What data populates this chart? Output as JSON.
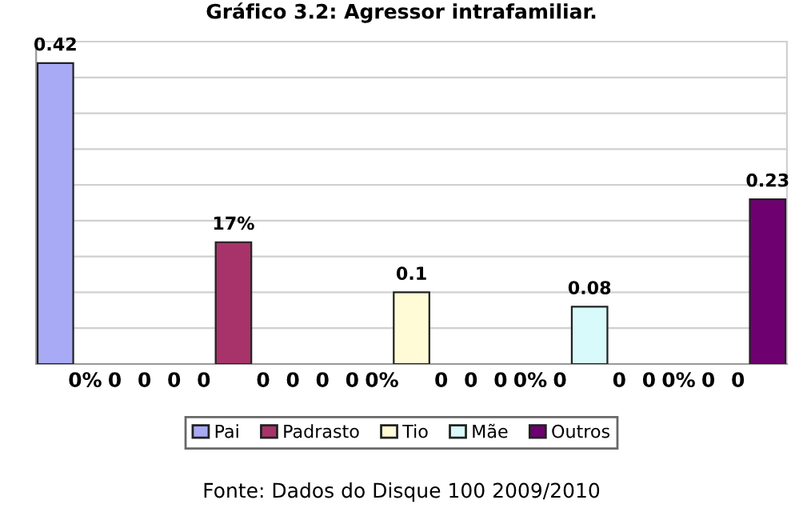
{
  "chart_data": {
    "type": "bar",
    "title": "Gráfico 3.2: Agressor intrafamiliar.",
    "categories": [
      null,
      "0%",
      "0",
      "0",
      "0",
      "0",
      null,
      "0",
      "0",
      "0",
      "0",
      "0%",
      null,
      "0",
      "0",
      "0",
      "0%",
      "0",
      null,
      "0",
      "0",
      "0%",
      "0",
      "0",
      null
    ],
    "series": [
      {
        "name": "Pai",
        "color": "#a9aaf5",
        "values": [
          0.42,
          null,
          null,
          null,
          null,
          null,
          null,
          null,
          null,
          null,
          null,
          null,
          null,
          null,
          null,
          null,
          null,
          null,
          null,
          null,
          null,
          null,
          null,
          null,
          null
        ],
        "value_labels": [
          "0.42",
          null,
          null,
          null,
          null,
          null,
          null,
          null,
          null,
          null,
          null,
          null,
          null,
          null,
          null,
          null,
          null,
          null,
          null,
          null,
          null,
          null,
          null,
          null,
          null
        ]
      },
      {
        "name": "Padrasto",
        "color": "#a8336a",
        "values": [
          null,
          null,
          null,
          null,
          null,
          null,
          0.17,
          null,
          null,
          null,
          null,
          null,
          null,
          null,
          null,
          null,
          null,
          null,
          null,
          null,
          null,
          null,
          null,
          null,
          null
        ],
        "value_labels": [
          null,
          null,
          null,
          null,
          null,
          null,
          "17%",
          null,
          null,
          null,
          null,
          null,
          null,
          null,
          null,
          null,
          null,
          null,
          null,
          null,
          null,
          null,
          null,
          null,
          null
        ]
      },
      {
        "name": "Tio",
        "color": "#fffbd6",
        "values": [
          null,
          null,
          null,
          null,
          null,
          null,
          null,
          null,
          null,
          null,
          null,
          null,
          0.1,
          null,
          null,
          null,
          null,
          null,
          null,
          null,
          null,
          null,
          null,
          null,
          null
        ],
        "value_labels": [
          null,
          null,
          null,
          null,
          null,
          null,
          null,
          null,
          null,
          null,
          null,
          null,
          "0.1",
          null,
          null,
          null,
          null,
          null,
          null,
          null,
          null,
          null,
          null,
          null,
          null
        ]
      },
      {
        "name": "Mãe",
        "color": "#d9fafa",
        "values": [
          null,
          null,
          null,
          null,
          null,
          null,
          null,
          null,
          null,
          null,
          null,
          null,
          null,
          null,
          null,
          null,
          null,
          null,
          0.08,
          null,
          null,
          null,
          null,
          null,
          null
        ],
        "value_labels": [
          null,
          null,
          null,
          null,
          null,
          null,
          null,
          null,
          null,
          null,
          null,
          null,
          null,
          null,
          null,
          null,
          null,
          null,
          "0.08",
          null,
          null,
          null,
          null,
          null,
          null
        ]
      },
      {
        "name": "Outros",
        "color": "#6f0070",
        "values": [
          null,
          null,
          null,
          null,
          null,
          null,
          null,
          null,
          null,
          null,
          null,
          null,
          null,
          null,
          null,
          null,
          null,
          null,
          null,
          null,
          null,
          null,
          null,
          null,
          0.23
        ],
        "value_labels": [
          null,
          null,
          null,
          null,
          null,
          null,
          null,
          null,
          null,
          null,
          null,
          null,
          null,
          null,
          null,
          null,
          null,
          null,
          null,
          null,
          null,
          null,
          null,
          null,
          "0.23"
        ]
      }
    ],
    "ylim": [
      0,
      0.45
    ],
    "yticks": [
      {
        "value": 0.05,
        "label": null
      },
      {
        "value": 0.1,
        "label": null
      },
      {
        "value": 0.15,
        "label": null
      },
      {
        "value": 0.2,
        "label": null
      },
      {
        "value": 0.25,
        "label": null
      },
      {
        "value": 0.3,
        "label": null
      },
      {
        "value": 0.35,
        "label": null
      },
      {
        "value": 0.4,
        "label": null
      }
    ],
    "tick_labels": "x",
    "grid": "y",
    "legend": "bottom",
    "annotations": [
      "Fonte: Dados do Disque 100 2009/2010"
    ]
  }
}
